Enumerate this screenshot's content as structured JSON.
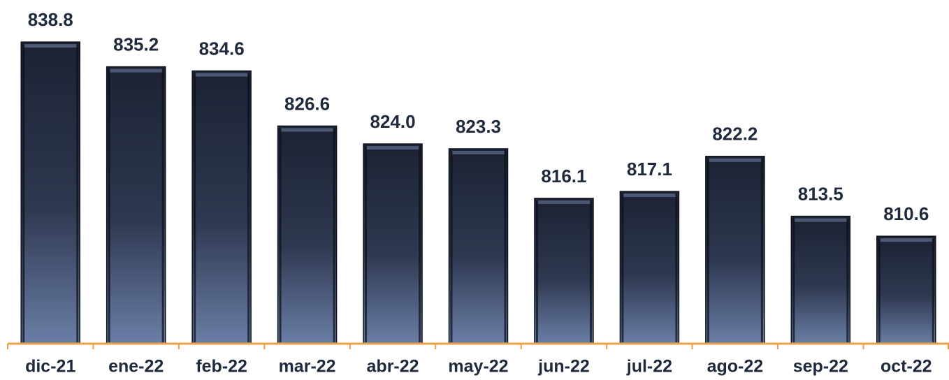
{
  "chart_data": {
    "type": "bar",
    "categories": [
      "dic-21",
      "ene-22",
      "feb-22",
      "mar-22",
      "abr-22",
      "may-22",
      "jun-22",
      "jul-22",
      "ago-22",
      "sep-22",
      "oct-22"
    ],
    "values": [
      838.8,
      835.2,
      834.6,
      826.6,
      824.0,
      823.3,
      816.1,
      817.1,
      822.2,
      813.5,
      810.6
    ],
    "value_labels": [
      "838.8",
      "835.2",
      "834.6",
      "826.6",
      "824.0",
      "823.3",
      "816.1",
      "817.1",
      "822.2",
      "813.5",
      "810.6"
    ],
    "color": "#1c2233",
    "axis_color": "#e8a04a",
    "ylim": [
      795,
      845
    ]
  }
}
